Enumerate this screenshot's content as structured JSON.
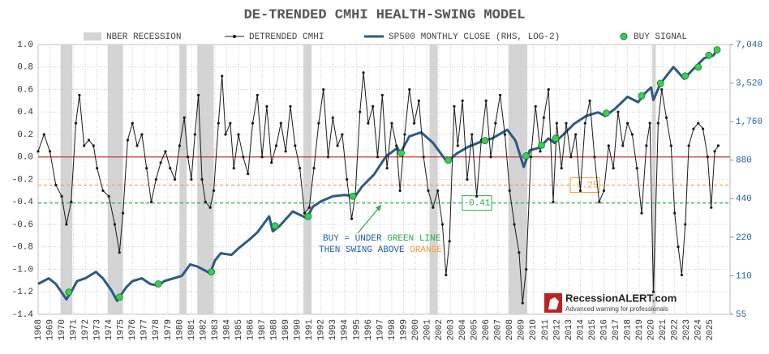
{
  "chart_data": {
    "type": "line",
    "title": "DE-TRENDED CMHI HEALTH-SWING MODEL",
    "recession_label": "NBER RECESSION",
    "recession_color": "#d4d4d4",
    "recessions": [
      [
        1969.9,
        1970.9
      ],
      [
        1973.9,
        1975.2
      ],
      [
        1980.0,
        1980.6
      ],
      [
        1981.5,
        1982.9
      ],
      [
        1990.5,
        1991.2
      ],
      [
        2001.2,
        2001.9
      ],
      [
        2007.9,
        2009.5
      ],
      [
        2020.1,
        2020.4
      ]
    ],
    "xlim": [
      1968,
      2026.7
    ],
    "xticks": [
      1968,
      1969,
      1970,
      1971,
      1972,
      1973,
      1974,
      1975,
      1976,
      1977,
      1978,
      1979,
      1980,
      1981,
      1982,
      1983,
      1984,
      1985,
      1986,
      1987,
      1988,
      1989,
      1990,
      1991,
      1992,
      1993,
      1994,
      1995,
      1996,
      1997,
      1998,
      1999,
      2000,
      2001,
      2002,
      2003,
      2004,
      2005,
      2006,
      2007,
      2008,
      2009,
      2010,
      2011,
      2012,
      2013,
      2014,
      2015,
      2016,
      2017,
      2018,
      2019,
      2020,
      2021,
      2022,
      2023,
      2024,
      2025
    ],
    "ylim": [
      -1.4,
      1.0
    ],
    "yticks": [
      {
        "value": -1.4,
        "label": "-1.4"
      },
      {
        "value": -1.2,
        "label": "-1.2"
      },
      {
        "value": -1.0,
        "label": "-1.0"
      },
      {
        "value": -0.8,
        "label": "-0.8"
      },
      {
        "value": -0.6,
        "label": "-0.6"
      },
      {
        "value": -0.4,
        "label": "-0.4"
      },
      {
        "value": -0.2,
        "label": "-0.2"
      },
      {
        "value": 0,
        "label": "0.0"
      },
      {
        "value": 0.2,
        "label": "0.2"
      },
      {
        "value": 0.4,
        "label": "0.4"
      },
      {
        "value": 0.6,
        "label": "0.6"
      },
      {
        "value": 0.8,
        "label": "0.8"
      },
      {
        "value": 1.0,
        "label": "1.0"
      }
    ],
    "y2lim": [
      55,
      7040
    ],
    "y2_log_base": 2,
    "y2ticks": [
      55,
      110,
      220,
      440,
      880,
      {
        "value": 1760,
        "label": "1,760"
      },
      {
        "value": 3520,
        "label": "3,520"
      },
      {
        "value": 7040,
        "label": "7,040"
      }
    ],
    "grid": true,
    "reference_lines": [
      {
        "value": 0,
        "color": "#c0392b"
      },
      {
        "value": -0.25,
        "color": "#e8a040"
      },
      {
        "value": -0.41,
        "color": "#2eaa4a"
      }
    ],
    "series": [
      {
        "name": "DETRENDED CMHI",
        "color": "#1a1a1a",
        "axis": "y",
        "style": "line-dots",
        "x": [
          1968.0,
          1968.5,
          1969.0,
          1969.5,
          1970.0,
          1970.4,
          1970.8,
          1971.2,
          1971.5,
          1971.9,
          1972.3,
          1972.7,
          1973.0,
          1973.5,
          1974.0,
          1974.5,
          1974.9,
          1975.2,
          1975.6,
          1976.0,
          1976.4,
          1976.8,
          1977.2,
          1977.6,
          1978.0,
          1978.4,
          1978.8,
          1979.2,
          1979.6,
          1980.0,
          1980.4,
          1980.7,
          1981.0,
          1981.3,
          1981.6,
          1981.9,
          1982.2,
          1982.6,
          1982.9,
          1983.3,
          1983.6,
          1983.9,
          1984.3,
          1984.6,
          1985.0,
          1985.4,
          1985.8,
          1986.2,
          1986.6,
          1987.0,
          1987.4,
          1987.8,
          1988.2,
          1988.6,
          1989.0,
          1989.4,
          1989.8,
          1990.2,
          1990.6,
          1991.0,
          1991.4,
          1991.8,
          1992.2,
          1992.6,
          1993.0,
          1993.4,
          1993.8,
          1994.2,
          1994.6,
          1994.9,
          1995.3,
          1995.6,
          1996.0,
          1996.4,
          1996.8,
          1997.2,
          1997.6,
          1998.0,
          1998.4,
          1998.7,
          1999.1,
          1999.5,
          1999.9,
          2000.3,
          2000.7,
          2001.1,
          2001.5,
          2001.9,
          2002.3,
          2002.6,
          2002.9,
          2003.3,
          2003.6,
          2004.0,
          2004.4,
          2004.8,
          2005.2,
          2005.6,
          2006.0,
          2006.4,
          2006.8,
          2007.2,
          2007.6,
          2008.0,
          2008.4,
          2008.8,
          2009.1,
          2009.4,
          2009.8,
          2010.2,
          2010.6,
          2010.9,
          2011.3,
          2011.7,
          2012.0,
          2012.4,
          2012.8,
          2013.2,
          2013.6,
          2014.0,
          2014.4,
          2014.8,
          2015.2,
          2015.6,
          2016.0,
          2016.4,
          2016.8,
          2017.2,
          2017.6,
          2018.0,
          2018.4,
          2018.8,
          2019.2,
          2019.6,
          2019.9,
          2020.2,
          2020.6,
          2020.9,
          2021.3,
          2021.7,
          2022.0,
          2022.3,
          2022.6,
          2022.9,
          2023.2,
          2023.6,
          2024.0,
          2024.4,
          2024.8,
          2025.1,
          2025.4,
          2025.7
        ],
        "values": [
          0.05,
          0.2,
          0.05,
          -0.25,
          -0.35,
          -0.6,
          -0.4,
          0.3,
          0.55,
          0.1,
          0.15,
          0.1,
          -0.1,
          -0.3,
          -0.35,
          -0.6,
          -0.85,
          -0.5,
          0.15,
          0.3,
          0.1,
          0.2,
          -0.1,
          -0.4,
          -0.2,
          -0.05,
          0.05,
          -0.1,
          -0.2,
          0.1,
          0.35,
          0.0,
          -0.2,
          0.2,
          0.55,
          -0.2,
          -0.4,
          -0.45,
          -0.3,
          0.3,
          0.72,
          0.2,
          0.3,
          -0.1,
          0.2,
          0.0,
          -0.15,
          0.3,
          0.55,
          0.0,
          0.45,
          -0.05,
          0.1,
          0.3,
          0.05,
          0.45,
          0.1,
          -0.1,
          -0.5,
          -0.45,
          -0.1,
          0.3,
          0.6,
          0.0,
          0.35,
          0.1,
          0.2,
          -0.2,
          -0.55,
          -0.35,
          0.4,
          0.75,
          0.3,
          0.45,
          0.0,
          0.55,
          -0.1,
          0.3,
          0.1,
          -0.3,
          0.2,
          0.6,
          0.3,
          0.5,
          0.0,
          -0.3,
          -0.45,
          -0.3,
          -0.6,
          -1.05,
          -0.75,
          0.45,
          0.1,
          0.5,
          -0.2,
          0.2,
          -0.35,
          0.15,
          0.5,
          0.0,
          0.3,
          0.55,
          0.2,
          -0.3,
          -0.6,
          -0.85,
          -1.3,
          -1.0,
          0.0,
          0.45,
          0.05,
          0.35,
          0.6,
          -0.4,
          0.3,
          -0.1,
          0.3,
          0.0,
          0.2,
          -0.3,
          0.3,
          0.5,
          0.0,
          -0.4,
          -0.3,
          0.1,
          -0.1,
          0.4,
          0.1,
          0.3,
          0.2,
          -0.1,
          -0.5,
          0.1,
          0.3,
          -1.2,
          0.3,
          0.6,
          0.35,
          0.1,
          -0.5,
          -0.8,
          -1.05,
          -0.6,
          0.1,
          0.25,
          0.3,
          0.25,
          0.0,
          -0.45,
          0.05,
          0.1
        ]
      },
      {
        "name": "SP500 MONTHLY CLOSE (RHS, LOG-2)",
        "color": "#2c5a85",
        "axis": "y2",
        "style": "line",
        "x": [
          1968.0,
          1968.9,
          1969.5,
          1970.4,
          1970.9,
          1971.3,
          1972.0,
          1972.9,
          1973.5,
          1974.2,
          1974.7,
          1974.9,
          1975.5,
          1976.0,
          1976.8,
          1977.5,
          1978.2,
          1978.7,
          1979.5,
          1980.2,
          1980.9,
          1981.5,
          1982.6,
          1983.0,
          1983.5,
          1984.4,
          1985.0,
          1985.9,
          1986.6,
          1987.6,
          1987.9,
          1988.5,
          1989.6,
          1990.8,
          1991.3,
          1992.0,
          1993.0,
          1994.0,
          1994.9,
          1995.5,
          1996.5,
          1997.5,
          1998.5,
          1998.7,
          1999.5,
          2000.5,
          2001.5,
          2002.7,
          2003.5,
          2004.5,
          2005.5,
          2006.5,
          2007.8,
          2008.5,
          2009.2,
          2009.7,
          2010.5,
          2011.3,
          2011.8,
          2012.5,
          2013.5,
          2014.5,
          2015.5,
          2016.1,
          2016.9,
          2018.0,
          2018.9,
          2019.5,
          2020.0,
          2020.2,
          2020.8,
          2021.9,
          2022.8,
          2023.5,
          2024.5,
          2025.3,
          2025.7
        ],
        "values": [
          95,
          105,
          95,
          72,
          85,
          100,
          105,
          118,
          105,
          85,
          70,
          75,
          90,
          100,
          105,
          95,
          92,
          100,
          105,
          110,
          135,
          130,
          115,
          145,
          165,
          160,
          180,
          210,
          240,
          320,
          245,
          270,
          350,
          310,
          380,
          420,
          460,
          470,
          460,
          550,
          680,
          940,
          1100,
          990,
          1350,
          1450,
          1200,
          850,
          990,
          1120,
          1220,
          1300,
          1520,
          1250,
          780,
          1050,
          1100,
          1300,
          1200,
          1380,
          1700,
          1950,
          2080,
          1950,
          2200,
          2750,
          2500,
          2950,
          3250,
          2600,
          3500,
          4700,
          3800,
          4450,
          5500,
          5800,
          6700
        ]
      },
      {
        "name": "BUY SIGNAL",
        "color": "#33d14f",
        "axis": "y2",
        "style": "dots",
        "x": [
          1970.6,
          1974.9,
          1978.2,
          1982.7,
          1988.1,
          1990.9,
          1994.7,
          1998.8,
          2002.8,
          2005.9,
          2009.4,
          2010.7,
          2011.9,
          2016.2,
          2019.2,
          2020.8,
          2022.9,
          2024.0,
          2024.9,
          2025.6
        ],
        "values": [
          82,
          75,
          95,
          118,
          270,
          320,
          460,
          1000,
          880,
          1250,
          950,
          1150,
          1300,
          2050,
          2800,
          3500,
          4000,
          4700,
          5800,
          6400
        ]
      }
    ],
    "annotation": [
      "BUY = UNDER ",
      "GREEN LINE",
      "THEN SWING ABOVE ",
      "ORANGE"
    ],
    "logo": {
      "name": "RecessionALERT.com",
      "tagline": "Advanced warning for professionals"
    }
  }
}
